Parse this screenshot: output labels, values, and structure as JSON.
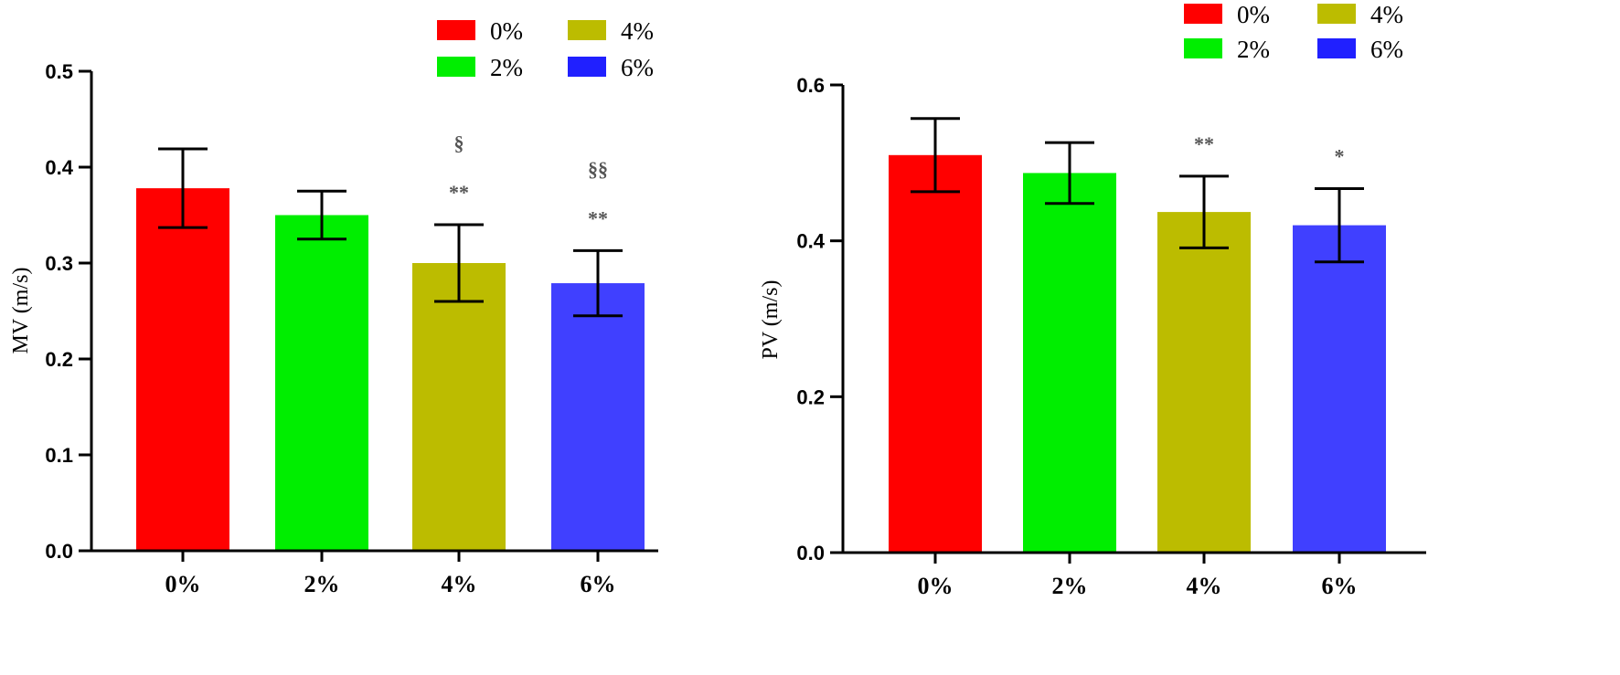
{
  "chart_data": [
    {
      "type": "bar",
      "ylabel": "MV (m/s)",
      "categories": [
        "0%",
        "2%",
        "4%",
        "6%"
      ],
      "values": [
        0.378,
        0.35,
        0.3,
        0.279
      ],
      "errors": [
        0.041,
        0.025,
        0.04,
        0.034
      ],
      "colors": [
        "#ff0000",
        "#00ee00",
        "#bcbc00",
        "#4040ff"
      ],
      "ylim": [
        0,
        0.5
      ],
      "yticks": [
        0.0,
        0.1,
        0.2,
        0.3,
        0.4,
        0.5
      ],
      "ytick_labels": [
        "0.0",
        "0.1",
        "0.2",
        "0.3",
        "0.4",
        "0.5"
      ],
      "annotations": [
        {
          "category": "4%",
          "lines": [
            "§",
            "**"
          ]
        },
        {
          "category": "6%",
          "lines": [
            "§§",
            "**"
          ]
        }
      ],
      "legend": [
        {
          "label": "0%",
          "color": "#ff0000"
        },
        {
          "label": "2%",
          "color": "#00ee00"
        },
        {
          "label": "4%",
          "color": "#bcbc00"
        },
        {
          "label": "6%",
          "color": "#2020ff"
        }
      ],
      "legend_position": "top-right"
    },
    {
      "type": "bar",
      "ylabel": "PV (m/s)",
      "categories": [
        "0%",
        "2%",
        "4%",
        "6%"
      ],
      "values": [
        0.51,
        0.487,
        0.437,
        0.42
      ],
      "errors": [
        0.047,
        0.039,
        0.046,
        0.047
      ],
      "colors": [
        "#ff0000",
        "#00ee00",
        "#bcbc00",
        "#4040ff"
      ],
      "ylim": [
        0,
        0.6
      ],
      "yticks": [
        0.0,
        0.2,
        0.4,
        0.6
      ],
      "ytick_labels": [
        "0.0",
        "0.2",
        "0.4",
        "0.6"
      ],
      "annotations": [
        {
          "category": "4%",
          "lines": [
            "**"
          ]
        },
        {
          "category": "6%",
          "lines": [
            "*"
          ]
        }
      ],
      "legend": [
        {
          "label": "0%",
          "color": "#ff0000"
        },
        {
          "label": "2%",
          "color": "#00ee00"
        },
        {
          "label": "4%",
          "color": "#bcbc00"
        },
        {
          "label": "6%",
          "color": "#2020ff"
        }
      ],
      "legend_position": "top-right"
    }
  ]
}
